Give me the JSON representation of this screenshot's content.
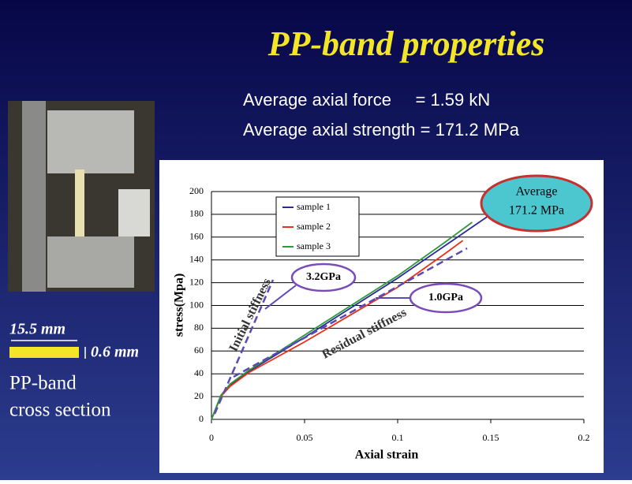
{
  "slide": {
    "title": "PP-band properties",
    "lines": [
      "Average axial force     = 1.59 kN",
      "Average axial strength = 171.2 MPa"
    ],
    "width_label": "15.5 mm",
    "thickness_label": "0.6 mm",
    "caption": [
      "PP-band",
      "cross section"
    ]
  },
  "chart_data": {
    "type": "line",
    "x_label": "Axial strain",
    "y_label": "stress(Mpa)",
    "xlim": [
      0,
      0.2
    ],
    "ylim": [
      0,
      200
    ],
    "xticks": [
      0,
      0.05,
      0.1,
      0.15,
      0.2
    ],
    "yticks": [
      0,
      20,
      40,
      60,
      80,
      100,
      120,
      140,
      160,
      180,
      200
    ],
    "grid": true,
    "legend": "upper left",
    "series": [
      {
        "name": "sample 1",
        "color": "#2a2a9a",
        "x": [
          0,
          0.005,
          0.01,
          0.02,
          0.03,
          0.05,
          0.075,
          0.1,
          0.125,
          0.15
        ],
        "values": [
          0,
          20,
          30,
          42,
          52,
          72,
          98,
          124,
          152,
          180
        ]
      },
      {
        "name": "sample 2",
        "color": "#e8301c",
        "x": [
          0,
          0.005,
          0.01,
          0.02,
          0.03,
          0.05,
          0.075,
          0.1,
          0.125,
          0.135
        ],
        "values": [
          0,
          20,
          29,
          41,
          50,
          68,
          92,
          116,
          145,
          157
        ]
      },
      {
        "name": "sample 3",
        "color": "#2e9a3a",
        "x": [
          0,
          0.005,
          0.01,
          0.02,
          0.03,
          0.05,
          0.075,
          0.1,
          0.125,
          0.14
        ],
        "values": [
          0,
          21,
          31,
          43,
          53,
          74,
          100,
          126,
          155,
          173
        ]
      }
    ],
    "annotations": {
      "initial": "Initial stiffness",
      "residual": "Residual stiffness",
      "initial_value": "3.2GPa",
      "residual_value": "1.0GPa",
      "average": [
        "Average",
        "171.2 MPa"
      ]
    }
  }
}
